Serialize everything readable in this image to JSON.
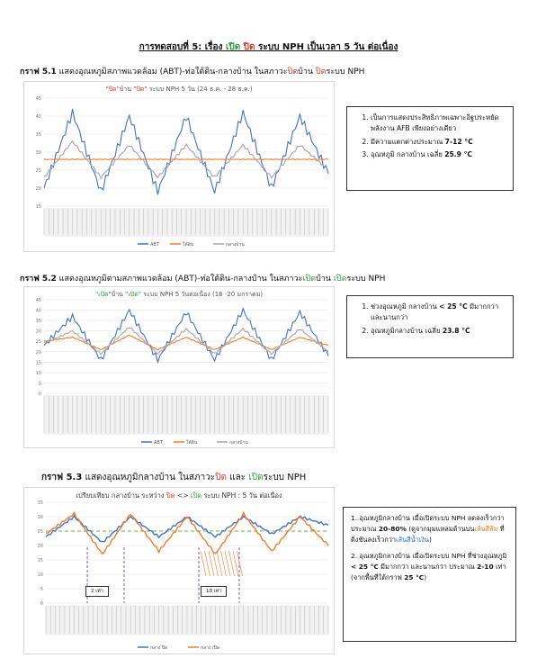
{
  "heading": {
    "prefix": "การทดสอบที่ 5: เรื่อง ",
    "open": "เปิด",
    "close": "ปิด",
    "suffix": " ระบบ NPH เป็นเวลา 5 วัน ต่อเนื่อง"
  },
  "g1": {
    "label": "กราฟ 5.1",
    "caption_a": " แสดงอุณหภูมิสภาพแวดล้อม (ABT)-ท่อใต้ดิน-กลางบ้าน ในสภาวะ",
    "caption_close1": "ปิด",
    "caption_b": "บ้าน ",
    "caption_close2": "ปิด",
    "caption_c": "ระบบ NPH",
    "chart_title_q1": "\"ปิด\"",
    "chart_title_mid": "บ้าน ",
    "chart_title_q2": "\"ปิด\"",
    "chart_title_rest": " ระบบ NPH 5 วัน (24 ธ.ค. - 28 ธ.ค.)",
    "legend": [
      "ABT",
      "ใต้ดิน",
      "กลางบ้าน"
    ]
  },
  "note1": {
    "items": [
      {
        "text": "เป็นการแสดงประสิทธิภาพเฉพาะอิฐประหยัดพลังงาน AFB เพียงอย่างเดียว"
      },
      {
        "pre": "มีความแตกต่างประมาณ ",
        "bold": "7-12 °C"
      },
      {
        "pre": "อุณหภูมิ กลางบ้าน เฉลี่ย ",
        "bold": "25.9 °C"
      }
    ]
  },
  "g2": {
    "label": "กราฟ 5.2",
    "caption_a": " แสดงอุณหภูมิตามสภาพแวดล้อม (ABT)-ท่อใต้ดิน-กลางบ้าน ในสภาวะ",
    "caption_open1": "เปิด",
    "caption_b": "บ้าน ",
    "caption_open2": "เปิด",
    "caption_c": "ระบบ NPH",
    "chart_title_q1": "\"เปิด\"",
    "chart_title_mid": "บ้าน ",
    "chart_title_q2": "\"เปิด\"",
    "chart_title_rest": " ระบบ NPH 5 วันต่อเนื่อง (16 -20 มกราคม)",
    "legend": [
      "ABT",
      "ใต้ดิน",
      "กลางบ้าน"
    ]
  },
  "note2": {
    "items": [
      {
        "pre": "ช่วงอุณหภูมิ กลางบ้าน ",
        "bold": "< 25 °C",
        "post": " มีมากกว่า และนานกว่า"
      },
      {
        "pre": "อุณหภูมิกลางบ้าน เฉลี่ย ",
        "bold": "23.8 °C"
      }
    ]
  },
  "g3": {
    "label": "กราฟ 5.3",
    "caption_a": " แสดงอุณหภูมิกลางบ้าน ในสภาวะ",
    "caption_close": "ปิด",
    "caption_and": " และ ",
    "caption_open": "เปิด",
    "caption_c": "ระบบ NPH",
    "chart_title_a": "เปรียบเทียบ กลางบ้าน ระหว่าง ",
    "chart_title_close": "ปิด",
    "chart_title_arrow": " <> ",
    "chart_title_open": "เปิด",
    "chart_title_rest": " ระบบ NPH : 5 วัน ต่อเนื่อง",
    "box1": "2 เท่า",
    "box2": "10 เท่า",
    "legend": [
      "กลาง ปิด",
      "กลาง เปิด"
    ]
  },
  "note3": {
    "p1_a": "1. อุณหภูมิกลางบ้าน เมื่อเปิดระบบ NPH ลดลงเร็วกว่า ประมาณ ",
    "p1_bold": "20-80%",
    "p1_b": " (ดูจากมุมแหลมด้านบน",
    "p1_orange": "เส้นสีส้ม",
    "p1_c": " ที่ดิ่งชันลงเร็วกว่า",
    "p1_blue": "เส้นสีน้ำเงิน",
    "p1_d": ")",
    "p2_a": "2. อุณหภูมิกลางบ้าน เมื่อเปิดระบบ NPH ที่ช่วงอุณหภูมิ ",
    "p2_bold": "< 25 °C",
    "p2_b": " มีมากกว่า และนานกว่า ประมาณ ",
    "p2_bold2": "2-10",
    "p2_c": " เท่า (จากพื้นที่ใต้กราฟ ",
    "p2_bold3": "25 °C",
    "p2_d": ")"
  },
  "colors": {
    "blue": "#4472c4",
    "orange": "#ed7d31",
    "gray": "#a5a5a5",
    "green": "#70ad47",
    "red": "#d03a2b"
  },
  "chart_data": [
    {
      "type": "line",
      "x": [
        "day1",
        "day1.5",
        "day2",
        "day2.5",
        "day3",
        "day3.5",
        "day4",
        "day4.5",
        "day5",
        "day5.5",
        "day6"
      ],
      "ylim": [
        15,
        45
      ],
      "yticks": [
        "15",
        "20",
        "25",
        "30",
        "35",
        "40",
        "45"
      ],
      "series": [
        {
          "name": "ABT",
          "values": [
            20,
            41,
            19,
            40,
            19,
            40,
            19,
            41,
            20,
            40,
            24
          ]
        },
        {
          "name": "ใต้ดิน",
          "values": [
            28,
            28,
            28,
            28,
            28,
            28,
            28,
            28,
            28,
            28,
            28
          ]
        },
        {
          "name": "กลางบ้าน",
          "values": [
            23,
            33,
            23,
            32,
            23,
            32,
            23,
            32,
            23,
            32,
            25
          ]
        }
      ]
    },
    {
      "type": "line",
      "x": [
        "day1",
        "day1.5",
        "day2",
        "day2.5",
        "day3",
        "day3.5",
        "day4",
        "day4.5",
        "day5",
        "day5.5",
        "day6"
      ],
      "ylim": [
        0,
        45
      ],
      "yticks": [
        "0",
        "5",
        "10",
        "15",
        "20",
        "25",
        "30",
        "35",
        "40",
        "45"
      ],
      "series": [
        {
          "name": "ABT",
          "values": [
            23,
            37,
            16,
            40,
            16,
            39,
            16,
            40,
            16,
            39,
            18
          ]
        },
        {
          "name": "ใต้ดิน",
          "values": [
            25,
            27,
            21,
            28,
            21,
            27,
            21,
            27,
            21,
            27,
            23
          ]
        },
        {
          "name": "กลางบ้าน",
          "values": [
            24,
            30,
            19,
            32,
            19,
            31,
            19,
            31,
            19,
            31,
            20
          ]
        }
      ]
    },
    {
      "type": "line",
      "x": [
        "day1",
        "day1.5",
        "day2",
        "day2.5",
        "day3",
        "day3.5",
        "day4",
        "day4.5",
        "day5",
        "day5.5",
        "day6"
      ],
      "ylim": [
        0,
        35
      ],
      "yticks": [
        "0",
        "5",
        "10",
        "15",
        "20",
        "25",
        "30",
        "35"
      ],
      "reference_line": 25,
      "series": [
        {
          "name": "กลาง ปิด",
          "values": [
            23,
            30,
            21,
            30,
            23,
            30,
            23,
            30,
            24,
            30,
            27
          ]
        },
        {
          "name": "กลาง เปิด",
          "values": [
            24,
            31,
            17,
            31,
            18,
            30,
            17,
            31,
            18,
            30,
            20
          ]
        }
      ]
    }
  ]
}
